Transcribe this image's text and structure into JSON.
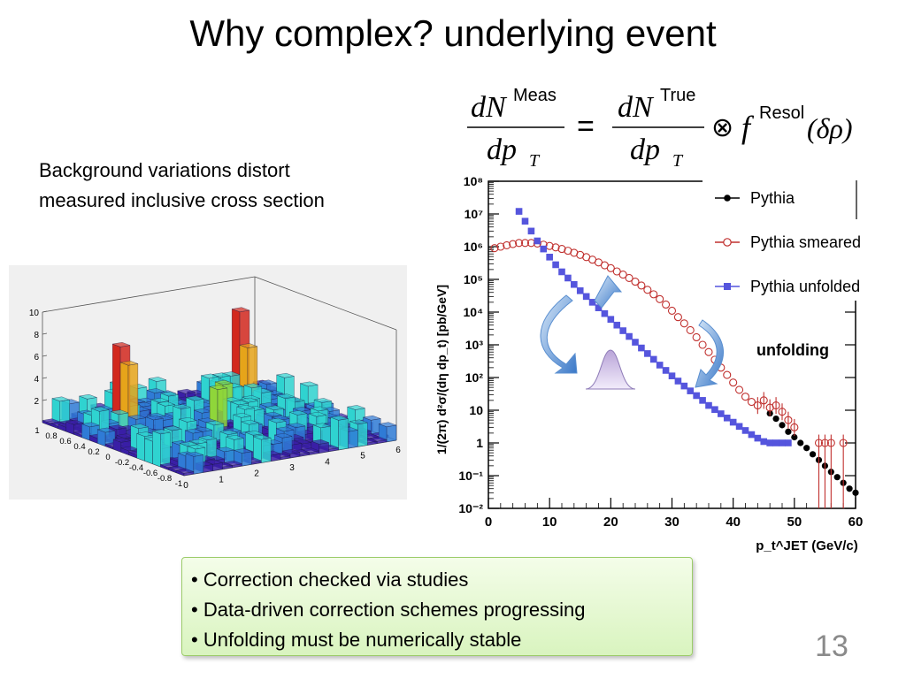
{
  "slide": {
    "title": "Why complex? underlying event",
    "subtitle_line1": "Background variations distort",
    "subtitle_line2": "measured inclusive cross section",
    "page_number": "13",
    "annotation": "unfolding"
  },
  "formula": {
    "lhs_num": "dN",
    "lhs_sup": "Meas",
    "lhs_den": "dp",
    "lhs_sub": "T",
    "eq": "=",
    "rhs_num": "dN",
    "rhs_sup": "True",
    "rhs_den": "dp",
    "rhs_sub": "T",
    "otimes": "⊗",
    "f": "f",
    "f_sup": "Resol",
    "arg": "(δρ)"
  },
  "bullets": [
    "• Correction checked via             studies",
    "• Data-driven correction schemes progressing",
    "• Unfolding must be numerically stable"
  ],
  "chart_data": [
    {
      "type": "scatter",
      "yscale": "log",
      "xlim": [
        0,
        60
      ],
      "ylim": [
        0.01,
        100000000
      ],
      "ylabel": "1/(2π) d²σ/(dη dp_t) [pb/GeV]",
      "xlabel": "p_t^JET (GeV/c)",
      "x_ticks": [
        "0",
        "10",
        "20",
        "30",
        "40",
        "50",
        "60"
      ],
      "y_ticks": [
        "10⁻²",
        "10⁻¹",
        "1",
        "10",
        "10²",
        "10³",
        "10⁴",
        "10⁵",
        "10⁶",
        "10⁷",
        "10⁸"
      ],
      "legend_position": "top-right",
      "series": [
        {
          "name": "Pythia",
          "marker": "filled-circle",
          "color": "#000000",
          "points": [
            [
              46,
              8
            ],
            [
              47,
              5.5
            ],
            [
              48,
              3.5
            ],
            [
              49,
              2.2
            ],
            [
              50,
              1.5
            ],
            [
              51,
              1.0
            ],
            [
              52,
              0.7
            ],
            [
              53,
              0.45
            ],
            [
              54,
              0.3
            ],
            [
              55,
              0.2
            ],
            [
              56,
              0.13
            ],
            [
              57,
              0.09
            ],
            [
              58,
              0.06
            ],
            [
              59,
              0.04
            ],
            [
              60,
              0.03
            ]
          ]
        },
        {
          "name": "Pythia smeared",
          "marker": "open-circle",
          "color": "#c0302e",
          "points": [
            [
              1,
              900000
            ],
            [
              2,
              1000000
            ],
            [
              3,
              1100000
            ],
            [
              4,
              1200000
            ],
            [
              5,
              1300000
            ],
            [
              6,
              1300000
            ],
            [
              7,
              1300000
            ],
            [
              8,
              1250000
            ],
            [
              9,
              1150000
            ],
            [
              10,
              1050000
            ],
            [
              11,
              950000
            ],
            [
              12,
              850000
            ],
            [
              13,
              750000
            ],
            [
              14,
              650000
            ],
            [
              15,
              560000
            ],
            [
              16,
              480000
            ],
            [
              17,
              400000
            ],
            [
              18,
              330000
            ],
            [
              19,
              270000
            ],
            [
              20,
              220000
            ],
            [
              21,
              175000
            ],
            [
              22,
              140000
            ],
            [
              23,
              110000
            ],
            [
              24,
              85000
            ],
            [
              25,
              65000
            ],
            [
              26,
              48000
            ],
            [
              27,
              35000
            ],
            [
              28,
              25000
            ],
            [
              29,
              17000
            ],
            [
              30,
              11000
            ],
            [
              31,
              7000
            ],
            [
              32,
              4500
            ],
            [
              33,
              2800
            ],
            [
              34,
              1700
            ],
            [
              35,
              1000
            ],
            [
              36,
              600
            ],
            [
              37,
              350
            ],
            [
              38,
              200
            ],
            [
              39,
              120
            ],
            [
              40,
              70
            ],
            [
              41,
              42
            ],
            [
              42,
              26
            ],
            [
              43,
              18
            ],
            [
              44,
              14
            ],
            [
              45,
              20
            ],
            [
              46,
              12
            ],
            [
              47,
              14
            ],
            [
              48,
              9
            ],
            [
              49,
              5
            ],
            [
              50,
              3
            ],
            [
              54,
              1
            ],
            [
              55,
              1
            ],
            [
              56,
              1
            ],
            [
              58,
              1
            ]
          ]
        },
        {
          "name": "Pythia unfolded",
          "marker": "filled-square",
          "color": "#5555dd",
          "points": [
            [
              5,
              12000000
            ],
            [
              6,
              6000000
            ],
            [
              7,
              3000000
            ],
            [
              8,
              1500000
            ],
            [
              9,
              850000
            ],
            [
              10,
              480000
            ],
            [
              11,
              280000
            ],
            [
              12,
              170000
            ],
            [
              13,
              110000
            ],
            [
              14,
              70000
            ],
            [
              15,
              45000
            ],
            [
              16,
              30000
            ],
            [
              17,
              20000
            ],
            [
              18,
              13500
            ],
            [
              19,
              9000
            ],
            [
              20,
              6000
            ],
            [
              21,
              4000
            ],
            [
              22,
              2700
            ],
            [
              23,
              1800
            ],
            [
              24,
              1200
            ],
            [
              25,
              800
            ],
            [
              26,
              540
            ],
            [
              27,
              360
            ],
            [
              28,
              240
            ],
            [
              29,
              165
            ],
            [
              30,
              112
            ],
            [
              31,
              78
            ],
            [
              32,
              55
            ],
            [
              33,
              39
            ],
            [
              34,
              28
            ],
            [
              35,
              20
            ],
            [
              36,
              14
            ],
            [
              37,
              10.5
            ],
            [
              38,
              7.8
            ],
            [
              39,
              5.8
            ],
            [
              40,
              4.3
            ],
            [
              41,
              3.2
            ],
            [
              42,
              2.4
            ],
            [
              43,
              1.8
            ],
            [
              44,
              1.4
            ],
            [
              45,
              1.1
            ],
            [
              46,
              1.0
            ],
            [
              47,
              1.0
            ],
            [
              48,
              1.0
            ],
            [
              49,
              1.0
            ]
          ]
        }
      ]
    },
    {
      "type": "heatmap",
      "style": "3d-lego",
      "zlim": [
        0,
        10
      ],
      "z_ticks": [
        "10",
        "8",
        "6",
        "4",
        "2"
      ],
      "x_ticks": [
        "0",
        "1",
        "2",
        "3",
        "4",
        "5",
        "6"
      ],
      "y_ticks": [
        "-1",
        "-0.8",
        "-0.6",
        "-0.4",
        "-0.2",
        "0",
        "0.2",
        "0.4",
        "0.6",
        "0.8",
        "1"
      ]
    }
  ]
}
